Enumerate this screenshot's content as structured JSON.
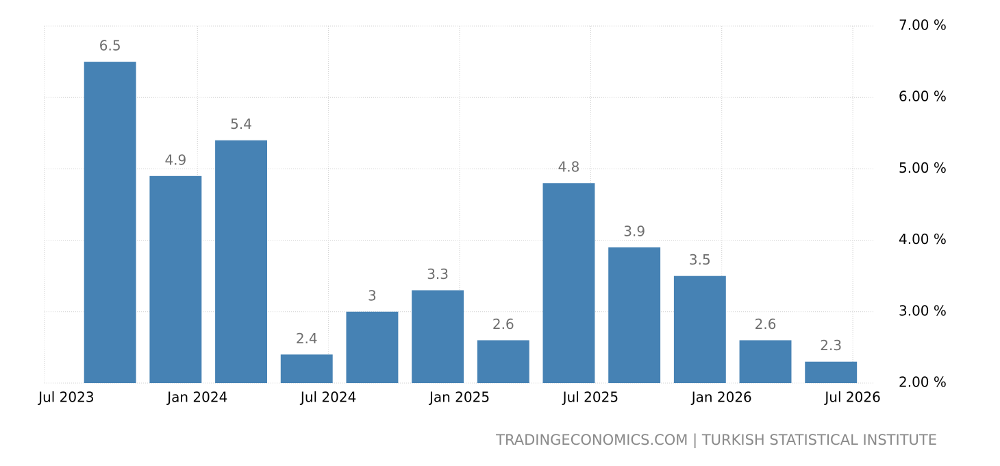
{
  "chart_data": {
    "type": "bar",
    "x": [
      "2023-09",
      "2023-12",
      "2024-03",
      "2024-06",
      "2024-09",
      "2024-12",
      "2025-03",
      "2025-06",
      "2025-09",
      "2025-12",
      "2026-03",
      "2026-06"
    ],
    "values": [
      6.5,
      4.9,
      5.4,
      2.4,
      3,
      3.3,
      2.6,
      4.8,
      3.9,
      3.5,
      2.6,
      2.3
    ],
    "color": "#4682b4",
    "xlim": [
      "2023-06",
      "2026-08"
    ],
    "xticks": [
      {
        "value": "2023-07",
        "label": "Jul 2023"
      },
      {
        "value": "2024-01",
        "label": "Jan 2024"
      },
      {
        "value": "2024-07",
        "label": "Jul 2024"
      },
      {
        "value": "2025-01",
        "label": "Jan 2025"
      },
      {
        "value": "2025-07",
        "label": "Jul 2025"
      },
      {
        "value": "2026-01",
        "label": "Jan 2026"
      },
      {
        "value": "2026-07",
        "label": "Jul 2026"
      }
    ],
    "ylim": [
      2,
      7
    ],
    "yticks": [
      {
        "value": 2,
        "label": "2.00 %"
      },
      {
        "value": 3,
        "label": "3.00 %"
      },
      {
        "value": 4,
        "label": "4.00 %"
      },
      {
        "value": 5,
        "label": "5.00 %"
      },
      {
        "value": 6,
        "label": "6.00 %"
      },
      {
        "value": 7,
        "label": "7.00 %"
      }
    ],
    "grid": true,
    "source": "TRADINGECONOMICS.COM | TURKISH STATISTICAL INSTITUTE"
  }
}
